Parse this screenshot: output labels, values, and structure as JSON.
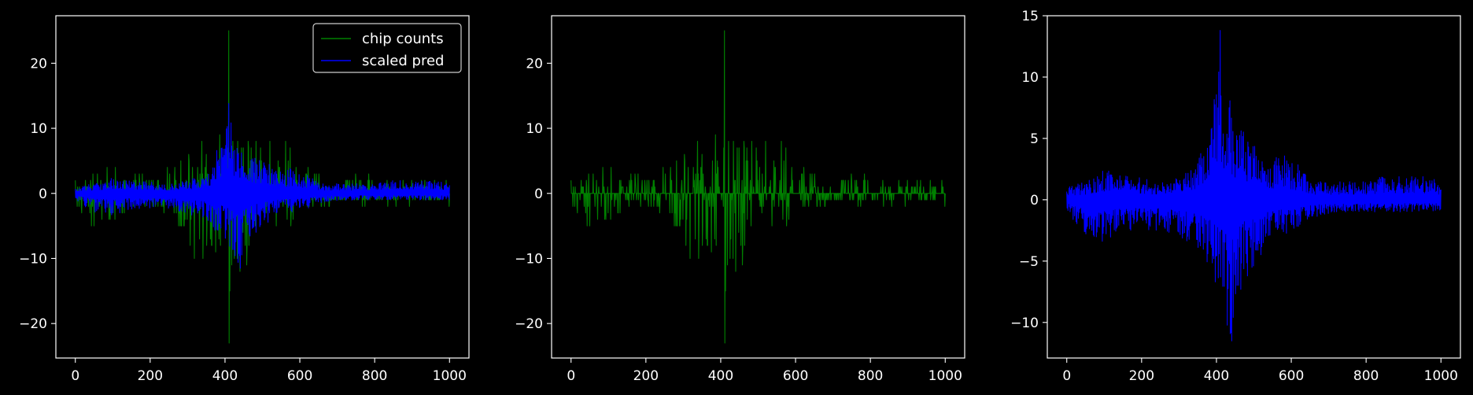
{
  "chart_data": [
    {
      "type": "line",
      "title": "",
      "xlabel": "",
      "ylabel": "",
      "xlim": [
        -52,
        1052
      ],
      "ylim": [
        -25.3,
        27.3
      ],
      "xticks": [
        0,
        200,
        400,
        600,
        800,
        1000
      ],
      "yticks": [
        -20,
        -10,
        0,
        10,
        20
      ],
      "legend": "top-right",
      "grid": false,
      "series": [
        {
          "name": "chip counts",
          "color": "#008000",
          "x_range": [
            0,
            1000
          ],
          "envelope_x": [
            0,
            50,
            100,
            150,
            200,
            250,
            300,
            330,
            360,
            380,
            400,
            410,
            420,
            440,
            460,
            480,
            500,
            520,
            540,
            560,
            580,
            600,
            620,
            650,
            700,
            750,
            800,
            850,
            900,
            950,
            1000
          ],
          "envelope_max": [
            2,
            3,
            4,
            3,
            3,
            5,
            6,
            7,
            10,
            12,
            12,
            25,
            14,
            11,
            9,
            8,
            11,
            8,
            6,
            10,
            8,
            6,
            5,
            3,
            4,
            3,
            3,
            2,
            2,
            2,
            2
          ],
          "envelope_min": [
            -2,
            -6,
            -4,
            -3,
            -3,
            -4,
            -6,
            -13,
            -8,
            -10,
            -13,
            -23,
            -14,
            -17,
            -11,
            -10,
            -9,
            -8,
            -6,
            -5,
            -5,
            -4,
            -3,
            -2,
            -2,
            -2,
            -2,
            -2,
            -2,
            -2,
            -3
          ]
        },
        {
          "name": "scaled pred",
          "color": "#0000ff",
          "x_range": [
            0,
            1000
          ],
          "envelope_x": [
            0,
            50,
            100,
            150,
            200,
            250,
            300,
            350,
            380,
            400,
            410,
            420,
            440,
            460,
            480,
            500,
            520,
            540,
            560,
            580,
            600,
            620,
            650,
            700,
            750,
            800,
            850,
            900,
            950,
            1000
          ],
          "envelope_max": [
            1.0,
            1.5,
            2.5,
            2.0,
            1.8,
            1.5,
            2.0,
            3.0,
            7.0,
            10.0,
            13.8,
            9.0,
            8.0,
            6.0,
            5.5,
            6.0,
            4.5,
            3.5,
            3.5,
            4.0,
            3.0,
            3.0,
            1.5,
            1.5,
            1.5,
            1.5,
            2.0,
            2.0,
            2.0,
            1.5
          ],
          "envelope_min": [
            -1.0,
            -3.0,
            -3.5,
            -2.5,
            -2.5,
            -2.5,
            -3.0,
            -4.5,
            -6.0,
            -7.5,
            -9.0,
            -10.5,
            -11.5,
            -8.0,
            -6.5,
            -5.5,
            -4.5,
            -3.5,
            -3.0,
            -3.0,
            -2.5,
            -2.5,
            -1.5,
            -1.2,
            -1.0,
            -1.0,
            -1.0,
            -1.0,
            -1.0,
            -1.0
          ]
        }
      ]
    },
    {
      "type": "line",
      "title": "",
      "xlabel": "",
      "ylabel": "",
      "xlim": [
        -52,
        1052
      ],
      "ylim": [
        -25.3,
        27.3
      ],
      "xticks": [
        0,
        200,
        400,
        600,
        800,
        1000
      ],
      "yticks": [
        -20,
        -10,
        0,
        10,
        20
      ],
      "legend": "none",
      "grid": false,
      "series": [
        {
          "color": "#008000",
          "x_range": [
            0,
            1000
          ],
          "envelope_x": [
            0,
            50,
            100,
            150,
            200,
            250,
            300,
            330,
            360,
            380,
            400,
            410,
            420,
            440,
            460,
            480,
            500,
            520,
            540,
            560,
            580,
            600,
            620,
            650,
            700,
            750,
            800,
            850,
            900,
            950,
            1000
          ],
          "envelope_max": [
            2,
            3,
            4,
            3,
            3,
            5,
            6,
            7,
            10,
            12,
            12,
            25,
            14,
            11,
            9,
            8,
            11,
            8,
            6,
            10,
            8,
            6,
            5,
            3,
            4,
            3,
            3,
            2,
            2,
            2,
            2
          ],
          "envelope_min": [
            -2,
            -6,
            -4,
            -3,
            -3,
            -4,
            -6,
            -13,
            -8,
            -10,
            -13,
            -23,
            -14,
            -17,
            -11,
            -10,
            -9,
            -8,
            -6,
            -5,
            -5,
            -4,
            -3,
            -2,
            -2,
            -2,
            -2,
            -2,
            -2,
            -2,
            -3
          ]
        }
      ]
    },
    {
      "type": "line",
      "title": "",
      "xlabel": "",
      "ylabel": "",
      "xlim": [
        -52,
        1052
      ],
      "ylim": [
        -12.9,
        15.0
      ],
      "xticks": [
        0,
        200,
        400,
        600,
        800,
        1000
      ],
      "yticks": [
        -10,
        -5,
        0,
        5,
        10,
        15
      ],
      "legend": "none",
      "grid": false,
      "series": [
        {
          "color": "#0000ff",
          "x_range": [
            0,
            1000
          ],
          "envelope_x": [
            0,
            50,
            100,
            150,
            200,
            250,
            300,
            350,
            380,
            400,
            410,
            420,
            440,
            460,
            480,
            500,
            520,
            540,
            560,
            580,
            600,
            620,
            650,
            700,
            750,
            800,
            850,
            900,
            950,
            1000
          ],
          "envelope_max": [
            1.0,
            1.5,
            2.5,
            2.0,
            1.8,
            1.5,
            2.0,
            3.0,
            7.0,
            10.0,
            13.8,
            9.0,
            8.0,
            6.0,
            5.5,
            6.0,
            4.5,
            3.5,
            3.5,
            4.0,
            3.0,
            3.0,
            1.5,
            1.5,
            1.5,
            1.5,
            2.0,
            2.0,
            2.0,
            1.5
          ],
          "envelope_min": [
            -1.0,
            -3.0,
            -3.5,
            -2.5,
            -2.5,
            -2.5,
            -3.0,
            -4.5,
            -6.0,
            -7.5,
            -9.0,
            -10.5,
            -11.5,
            -8.0,
            -6.5,
            -5.5,
            -4.5,
            -3.5,
            -3.0,
            -3.0,
            -2.5,
            -2.5,
            -1.5,
            -1.2,
            -1.0,
            -1.0,
            -1.0,
            -1.0,
            -1.0,
            -1.0
          ]
        }
      ]
    }
  ]
}
